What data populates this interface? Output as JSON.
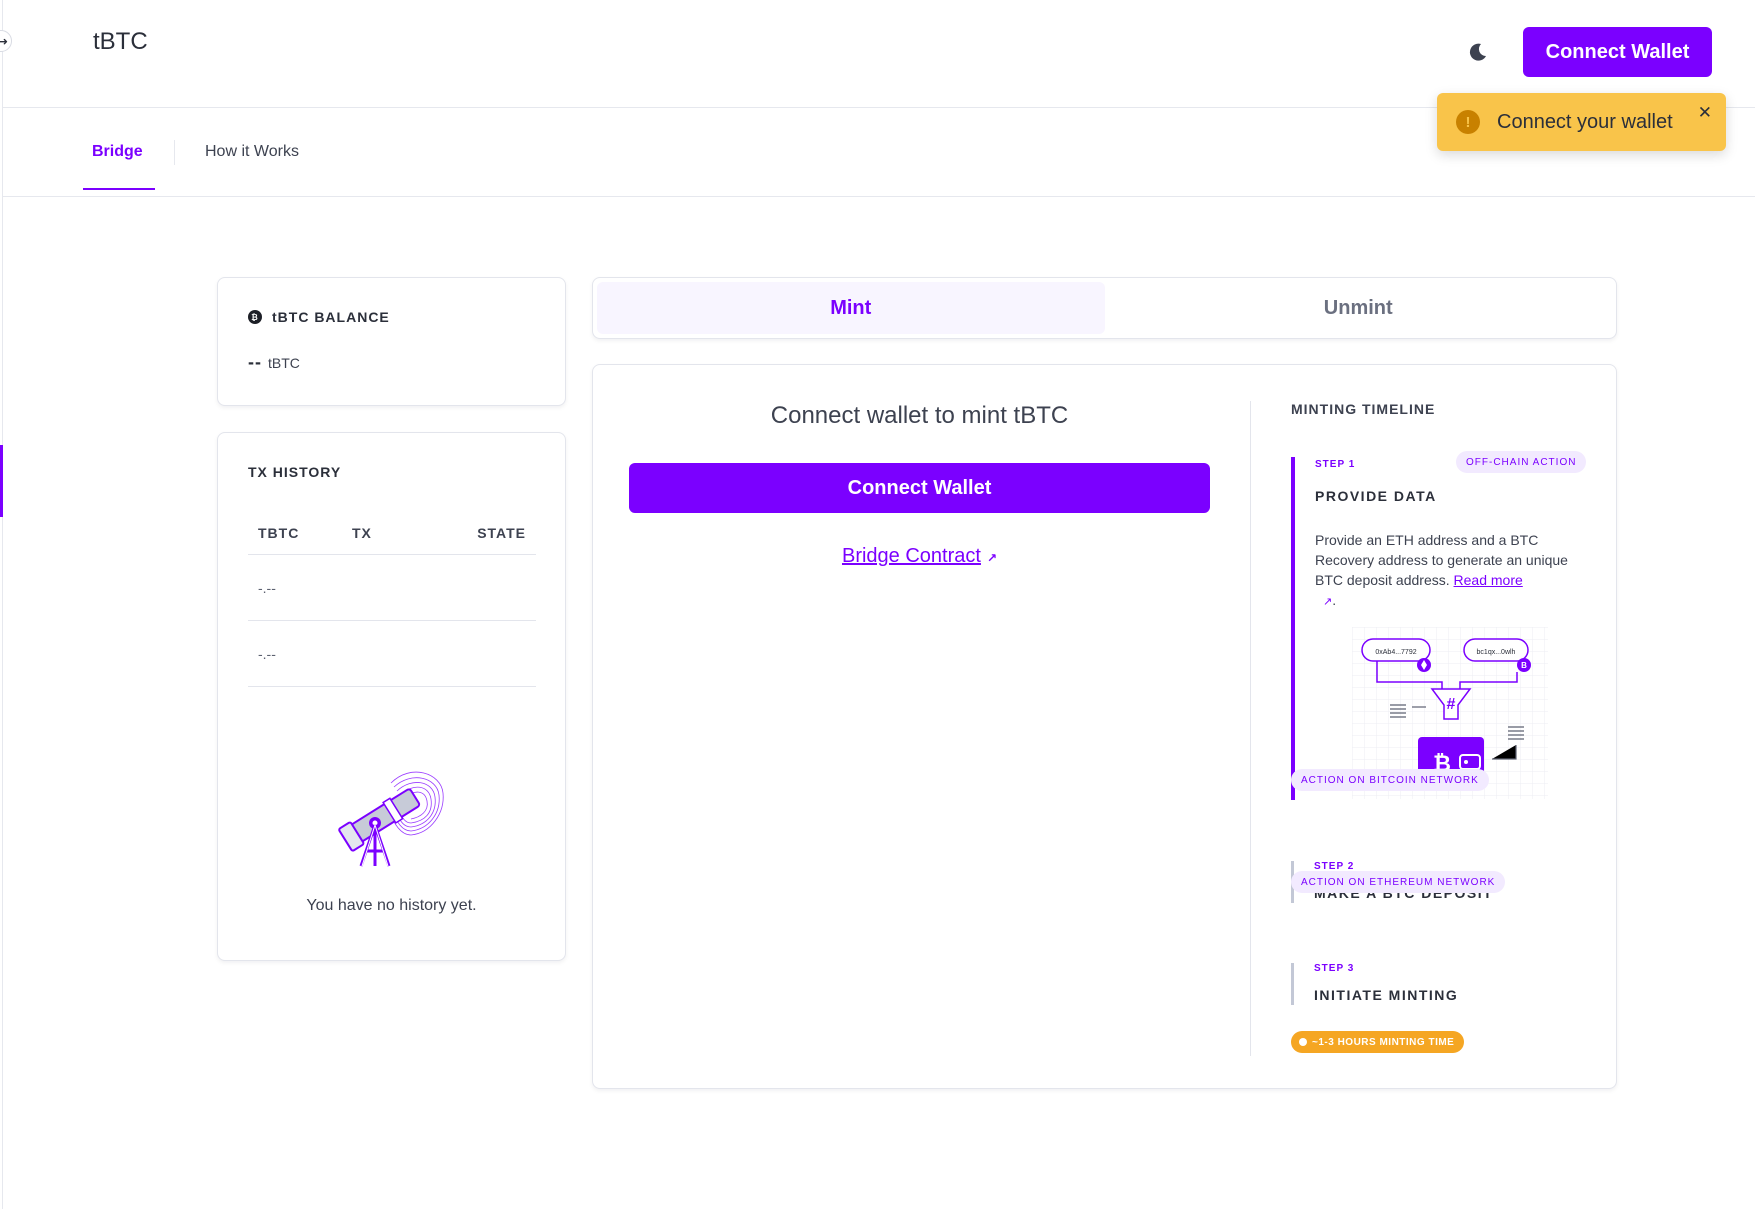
{
  "header": {
    "logo": "tBTC",
    "connect_label": "Connect Wallet",
    "theme_icon": "moon-icon"
  },
  "toast": {
    "message": "Connect your wallet",
    "icon": "!",
    "close": "✕"
  },
  "nav": {
    "tabs": [
      {
        "label": "Bridge"
      },
      {
        "label": "How it Works"
      }
    ]
  },
  "balance": {
    "title": "tBTC BALANCE",
    "icon_glyph": "₿",
    "value": "--",
    "unit": "tBTC"
  },
  "tx_history": {
    "title": "TX HISTORY",
    "columns": [
      "TBTC",
      "TX",
      "STATE"
    ],
    "rows": [
      {
        "tbtc": "-.--",
        "tx": "",
        "state": ""
      },
      {
        "tbtc": "-.--",
        "tx": "",
        "state": ""
      }
    ],
    "empty_text": "You have no history yet."
  },
  "mint_tabs": {
    "mint": "Mint",
    "unmint": "Unmint"
  },
  "mint_panel": {
    "heading": "Connect wallet to mint tBTC",
    "connect_label": "Connect Wallet",
    "bridge_link": "Bridge Contract",
    "ext_arrow": "↗"
  },
  "timeline": {
    "title": "MINTING TIMELINE",
    "step1": {
      "label": "STEP 1",
      "tag": "OFF-CHAIN ACTION",
      "title": "PROVIDE DATA",
      "desc": "Provide an ETH address and a BTC Recovery address to generate an unique BTC deposit address.",
      "read_more": "Read more",
      "illus_eth": "0xAb4...7792",
      "illus_btc": "bc1qx...0wlh"
    },
    "tag_bitcoin": "ACTION ON BITCOIN NETWORK",
    "step2": {
      "label": "STEP 2",
      "title": "MAKE A BTC DEPOSIT"
    },
    "tag_ethereum": "ACTION ON ETHEREUM NETWORK",
    "step3": {
      "label": "STEP 3",
      "title": "INITIATE MINTING"
    },
    "time_tag": "~1-3 HOURS MINTING TIME"
  },
  "colors": {
    "accent": "#7b00ff",
    "toast": "#f9c44a",
    "time_tag": "#f5a623"
  }
}
